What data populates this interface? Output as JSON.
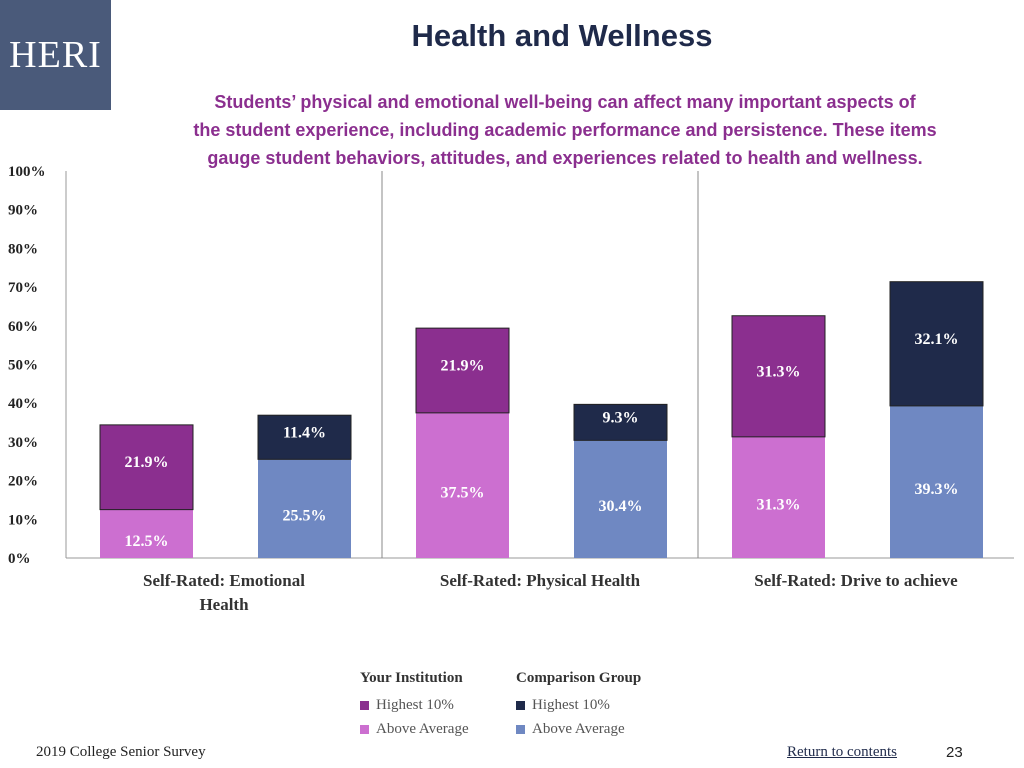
{
  "logo_text": "HERI",
  "title": "Health and Wellness",
  "subtitle_lines": [
    "Students’ physical and emotional well-being can affect many important aspects of",
    "the student experience, including academic performance and persistence. These items",
    "gauge student behaviors, attitudes, and experiences related to health and wellness."
  ],
  "colors": {
    "inst_highest": "#8b2f8f",
    "inst_above": "#cc6fd0",
    "comp_highest": "#1f2a4a",
    "comp_above": "#6f88c2"
  },
  "chart_data": {
    "type": "bar",
    "stacked": true,
    "ylim": [
      0,
      100
    ],
    "yticks": [
      "0%",
      "10%",
      "20%",
      "30%",
      "40%",
      "50%",
      "60%",
      "70%",
      "80%",
      "90%",
      "100%"
    ],
    "categories": [
      [
        "Self-Rated: Emotional",
        "Health"
      ],
      [
        "Self-Rated: Physical Health"
      ],
      [
        "Self-Rated: Drive to achieve"
      ]
    ],
    "groups": [
      {
        "name": "Your Institution",
        "series": [
          {
            "name": "Above Average",
            "values": [
              12.5,
              37.5,
              31.3
            ],
            "labels": [
              "12.5%",
              "37.5%",
              "31.3%"
            ]
          },
          {
            "name": "Highest 10%",
            "values": [
              21.9,
              21.9,
              31.3
            ],
            "labels": [
              "21.9%",
              "21.9%",
              "31.3%"
            ]
          }
        ]
      },
      {
        "name": "Comparison Group",
        "series": [
          {
            "name": "Above Average",
            "values": [
              25.5,
              30.4,
              39.3
            ],
            "labels": [
              "25.5%",
              "30.4%",
              "39.3%"
            ]
          },
          {
            "name": "Highest 10%",
            "values": [
              11.4,
              9.3,
              32.1
            ],
            "labels": [
              "11.4%",
              "9.3%",
              "32.1%"
            ]
          }
        ]
      }
    ]
  },
  "legend": {
    "institution_head": "Your Institution",
    "comparison_head": "Comparison Group",
    "highest": "Highest 10%",
    "above": "Above Average"
  },
  "footer": {
    "survey": "2019 College Senior Survey",
    "return_link": "Return to contents",
    "page_number": "23"
  }
}
